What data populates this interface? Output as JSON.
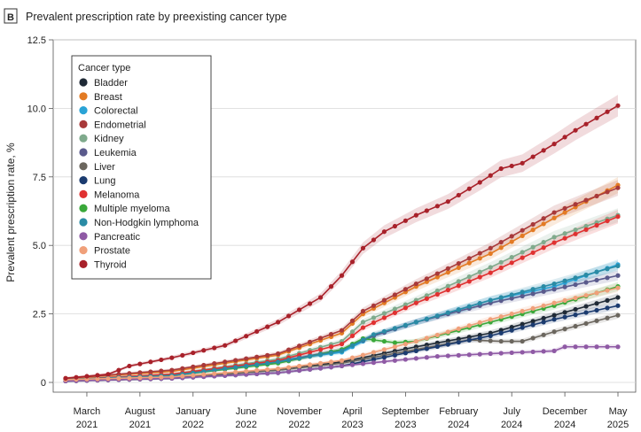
{
  "panel": {
    "badge": "B",
    "title": "Prevalent prescription rate by preexisting cancer type"
  },
  "chart_data": {
    "type": "line",
    "ylabel": "Prevalent prescription rate, %",
    "xlabel": "",
    "ylim": [
      0,
      12.5
    ],
    "yticks": [
      "0",
      "2.5",
      "5.0",
      "7.5",
      "10.0",
      "12.5"
    ],
    "x_months_start": "2021-01",
    "x_months_count": 53,
    "xticks": [
      {
        "month_index": 2,
        "label1": "March",
        "label2": "2021"
      },
      {
        "month_index": 7,
        "label1": "August",
        "label2": "2021"
      },
      {
        "month_index": 12,
        "label1": "January",
        "label2": "2022"
      },
      {
        "month_index": 17,
        "label1": "June",
        "label2": "2022"
      },
      {
        "month_index": 22,
        "label1": "November",
        "label2": "2022"
      },
      {
        "month_index": 27,
        "label1": "April",
        "label2": "2023"
      },
      {
        "month_index": 32,
        "label1": "September",
        "label2": "2023"
      },
      {
        "month_index": 37,
        "label1": "February",
        "label2": "2024"
      },
      {
        "month_index": 42,
        "label1": "July",
        "label2": "2024"
      },
      {
        "month_index": 47,
        "label1": "December",
        "label2": "2024"
      },
      {
        "month_index": 52,
        "label1": "May",
        "label2": "2025"
      }
    ],
    "legend_title": "Cancer type",
    "legend_position": "top-left",
    "series": [
      {
        "name": "Bladder",
        "color": "#1f2a36",
        "anchors": [
          [
            0,
            0.1
          ],
          [
            10,
            0.2
          ],
          [
            20,
            0.45
          ],
          [
            26,
            0.75
          ],
          [
            33,
            1.3
          ],
          [
            40,
            1.8
          ],
          [
            46,
            2.45
          ],
          [
            52,
            3.1
          ]
        ]
      },
      {
        "name": "Breast",
        "color": "#e37b24",
        "anchors": [
          [
            0,
            0.15
          ],
          [
            10,
            0.4
          ],
          [
            20,
            1.0
          ],
          [
            26,
            1.8
          ],
          [
            28,
            2.5
          ],
          [
            33,
            3.5
          ],
          [
            40,
            4.7
          ],
          [
            46,
            6.0
          ],
          [
            52,
            7.2
          ]
        ]
      },
      {
        "name": "Colorectal",
        "color": "#2aa3d6",
        "anchors": [
          [
            0,
            0.05
          ],
          [
            10,
            0.25
          ],
          [
            20,
            0.8
          ],
          [
            26,
            1.1
          ],
          [
            29,
            1.7
          ],
          [
            33,
            2.2
          ],
          [
            40,
            3.0
          ],
          [
            46,
            3.5
          ],
          [
            52,
            4.3
          ]
        ]
      },
      {
        "name": "Endometrial",
        "color": "#a8393a",
        "anchors": [
          [
            0,
            0.15
          ],
          [
            10,
            0.45
          ],
          [
            20,
            1.05
          ],
          [
            26,
            1.9
          ],
          [
            28,
            2.6
          ],
          [
            33,
            3.6
          ],
          [
            40,
            4.9
          ],
          [
            46,
            6.2
          ],
          [
            52,
            7.1
          ]
        ]
      },
      {
        "name": "Kidney",
        "color": "#7faa8c",
        "anchors": [
          [
            0,
            0.1
          ],
          [
            10,
            0.3
          ],
          [
            20,
            0.85
          ],
          [
            26,
            1.5
          ],
          [
            28,
            2.2
          ],
          [
            33,
            3.0
          ],
          [
            40,
            4.2
          ],
          [
            46,
            5.3
          ],
          [
            52,
            6.1
          ]
        ]
      },
      {
        "name": "Leukemia",
        "color": "#5a5a8c",
        "anchors": [
          [
            0,
            0.1
          ],
          [
            10,
            0.25
          ],
          [
            20,
            0.75
          ],
          [
            26,
            1.2
          ],
          [
            29,
            1.7
          ],
          [
            33,
            2.2
          ],
          [
            40,
            2.9
          ],
          [
            46,
            3.4
          ],
          [
            52,
            3.9
          ]
        ]
      },
      {
        "name": "Liver",
        "color": "#6b665e",
        "anchors": [
          [
            0,
            0.05
          ],
          [
            10,
            0.15
          ],
          [
            20,
            0.45
          ],
          [
            26,
            0.7
          ],
          [
            33,
            1.2
          ],
          [
            38,
            1.55
          ],
          [
            41,
            1.5
          ],
          [
            43,
            1.5
          ],
          [
            46,
            1.85
          ],
          [
            52,
            2.45
          ]
        ]
      },
      {
        "name": "Lung",
        "color": "#1b3b6f",
        "anchors": [
          [
            0,
            0.05
          ],
          [
            10,
            0.15
          ],
          [
            20,
            0.35
          ],
          [
            26,
            0.6
          ],
          [
            33,
            1.15
          ],
          [
            40,
            1.7
          ],
          [
            46,
            2.3
          ],
          [
            52,
            2.8
          ]
        ]
      },
      {
        "name": "Melanoma",
        "color": "#e03131",
        "anchors": [
          [
            0,
            0.1
          ],
          [
            10,
            0.3
          ],
          [
            20,
            0.8
          ],
          [
            26,
            1.4
          ],
          [
            28,
            2.0
          ],
          [
            33,
            2.9
          ],
          [
            40,
            4.0
          ],
          [
            46,
            5.1
          ],
          [
            52,
            6.05
          ]
        ]
      },
      {
        "name": "Multiple myeloma",
        "color": "#3aa83a",
        "anchors": [
          [
            0,
            0.1
          ],
          [
            10,
            0.25
          ],
          [
            20,
            0.7
          ],
          [
            26,
            1.2
          ],
          [
            28,
            1.6
          ],
          [
            31,
            1.45
          ],
          [
            33,
            1.5
          ],
          [
            38,
            2.0
          ],
          [
            46,
            2.8
          ],
          [
            52,
            3.5
          ]
        ]
      },
      {
        "name": "Non-Hodgkin lymphoma",
        "color": "#2a8ba5",
        "anchors": [
          [
            0,
            0.1
          ],
          [
            10,
            0.25
          ],
          [
            20,
            0.75
          ],
          [
            26,
            1.15
          ],
          [
            29,
            1.75
          ],
          [
            33,
            2.2
          ],
          [
            40,
            3.0
          ],
          [
            46,
            3.6
          ],
          [
            52,
            4.25
          ]
        ]
      },
      {
        "name": "Pancreatic",
        "color": "#8f5aa5",
        "anchors": [
          [
            0,
            0.05
          ],
          [
            10,
            0.15
          ],
          [
            20,
            0.35
          ],
          [
            26,
            0.6
          ],
          [
            31,
            0.8
          ],
          [
            35,
            0.95
          ],
          [
            40,
            1.05
          ],
          [
            46,
            1.15
          ],
          [
            47,
            1.3
          ],
          [
            52,
            1.3
          ]
        ]
      },
      {
        "name": "Prostate",
        "color": "#f0a07a",
        "anchors": [
          [
            0,
            0.1
          ],
          [
            10,
            0.2
          ],
          [
            20,
            0.5
          ],
          [
            26,
            0.8
          ],
          [
            33,
            1.5
          ],
          [
            40,
            2.3
          ],
          [
            46,
            2.9
          ],
          [
            52,
            3.45
          ]
        ]
      },
      {
        "name": "Thyroid",
        "color": "#a8212a",
        "anchors": [
          [
            0,
            0.15
          ],
          [
            4,
            0.3
          ],
          [
            6,
            0.6
          ],
          [
            10,
            0.9
          ],
          [
            15,
            1.35
          ],
          [
            20,
            2.2
          ],
          [
            24,
            3.1
          ],
          [
            26,
            3.9
          ],
          [
            28,
            4.9
          ],
          [
            30,
            5.5
          ],
          [
            33,
            6.1
          ],
          [
            36,
            6.6
          ],
          [
            39,
            7.3
          ],
          [
            41,
            7.8
          ],
          [
            43,
            8.0
          ],
          [
            46,
            8.7
          ],
          [
            48,
            9.2
          ],
          [
            52,
            10.1
          ]
        ]
      }
    ]
  }
}
